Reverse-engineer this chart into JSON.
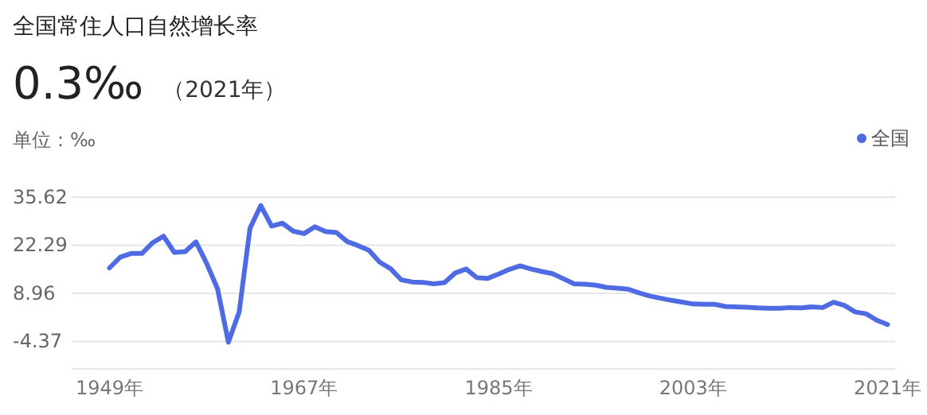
{
  "chart_data": {
    "type": "line",
    "title": "全国常住人口自然增长率",
    "subtitle": "0.3‰",
    "annotations": [
      "（2021年）"
    ],
    "ylabel": "单位：‰",
    "x": [
      1949,
      1950,
      1951,
      1952,
      1953,
      1954,
      1955,
      1956,
      1957,
      1958,
      1959,
      1960,
      1961,
      1962,
      1963,
      1964,
      1965,
      1966,
      1967,
      1968,
      1969,
      1970,
      1971,
      1972,
      1973,
      1974,
      1975,
      1976,
      1977,
      1978,
      1979,
      1980,
      1981,
      1982,
      1983,
      1984,
      1985,
      1986,
      1987,
      1988,
      1989,
      1990,
      1991,
      1992,
      1993,
      1994,
      1995,
      1996,
      1997,
      1998,
      1999,
      2000,
      2001,
      2002,
      2003,
      2004,
      2005,
      2006,
      2007,
      2008,
      2009,
      2010,
      2011,
      2012,
      2013,
      2014,
      2015,
      2016,
      2017,
      2018,
      2019,
      2020,
      2021
    ],
    "series": [
      {
        "name": "全国",
        "color": "#4f6be3",
        "values": [
          16,
          19,
          20,
          20,
          23,
          24.8,
          20.3,
          20.5,
          23.2,
          17.2,
          10.2,
          -4.6,
          3.8,
          27,
          33.3,
          27.6,
          28.4,
          26.2,
          25.5,
          27.4,
          26.1,
          25.8,
          23.3,
          22.2,
          20.9,
          17.6,
          15.8,
          12.7,
          12.1,
          12,
          11.6,
          11.9,
          14.6,
          15.7,
          13.3,
          13.1,
          14.3,
          15.6,
          16.6,
          15.7,
          15,
          14.4,
          13,
          11.6,
          11.5,
          11.2,
          10.6,
          10.4,
          10.1,
          9.1,
          8.2,
          7.6,
          7,
          6.5,
          6,
          5.9,
          5.9,
          5.3,
          5.2,
          5.1,
          4.9,
          4.8,
          4.8,
          5,
          4.9,
          5.2,
          5,
          6.5,
          5.6,
          3.8,
          3.3,
          1.5,
          0.3
        ]
      }
    ],
    "xlim": [
      1945.5,
      2021.7
    ],
    "xticks": [
      {
        "value": 1949,
        "label": "1949年"
      },
      {
        "value": 1967,
        "label": "1967年"
      },
      {
        "value": 1985,
        "label": "1985年"
      },
      {
        "value": 2003,
        "label": "2003年"
      },
      {
        "value": 2021,
        "label": "2021年"
      }
    ],
    "ylim": [
      -12,
      35.62
    ],
    "yticks": [
      -4.37,
      8.96,
      22.29,
      35.62
    ],
    "grid": "y",
    "legend": "top right",
    "marker": "none",
    "line_style": "solid"
  }
}
